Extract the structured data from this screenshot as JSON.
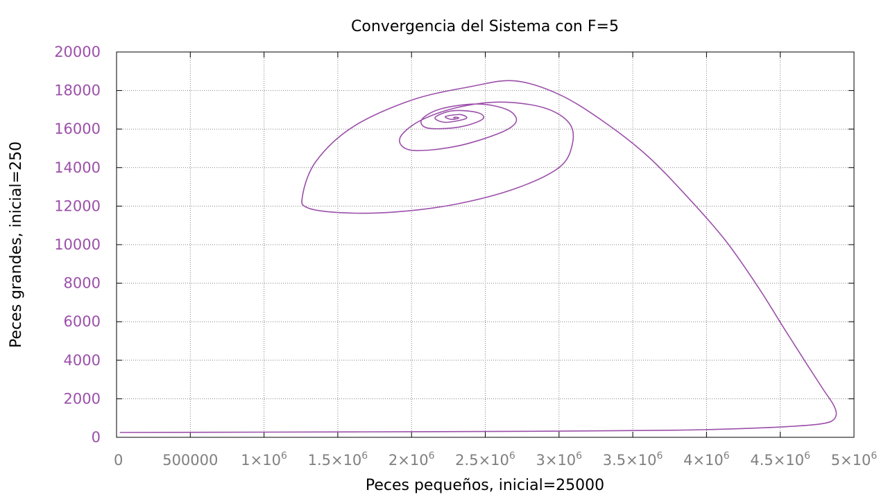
{
  "chart_data": {
    "type": "line",
    "title": "Convergencia del Sistema con F=5",
    "xlabel": "Peces pequeños, inicial=25000",
    "ylabel": "Peces grandes, inicial=250",
    "xlim": [
      0,
      5000000
    ],
    "ylim": [
      0,
      20000
    ],
    "x_ticks": [
      {
        "value": 0,
        "label": "0",
        "sup": ""
      },
      {
        "value": 500000,
        "label": "500000",
        "sup": ""
      },
      {
        "value": 1000000,
        "label": "1×10",
        "sup": "6"
      },
      {
        "value": 1500000,
        "label": "1.5×10",
        "sup": "6"
      },
      {
        "value": 2000000,
        "label": "2×10",
        "sup": "6"
      },
      {
        "value": 2500000,
        "label": "2.5×10",
        "sup": "6"
      },
      {
        "value": 3000000,
        "label": "3×10",
        "sup": "6"
      },
      {
        "value": 3500000,
        "label": "3.5×10",
        "sup": "6"
      },
      {
        "value": 4000000,
        "label": "4×10",
        "sup": "6"
      },
      {
        "value": 4500000,
        "label": "4.5×10",
        "sup": "6"
      },
      {
        "value": 5000000,
        "label": "5×10",
        "sup": "6"
      }
    ],
    "y_ticks": [
      {
        "value": 0,
        "label": "0"
      },
      {
        "value": 2000,
        "label": "2000"
      },
      {
        "value": 4000,
        "label": "4000"
      },
      {
        "value": 6000,
        "label": "6000"
      },
      {
        "value": 8000,
        "label": "8000"
      },
      {
        "value": 10000,
        "label": "10000"
      },
      {
        "value": 12000,
        "label": "12000"
      },
      {
        "value": 14000,
        "label": "14000"
      },
      {
        "value": 16000,
        "label": "16000"
      },
      {
        "value": 18000,
        "label": "18000"
      },
      {
        "value": 20000,
        "label": "20000"
      }
    ],
    "grid": true,
    "colors": {
      "series": "#9b4fa9",
      "ytick": "#9b4fa9",
      "xtick": "#7f7f7f",
      "grid": "#808080"
    },
    "series": [
      {
        "color": "#9b4fa9",
        "points": [
          [
            25000,
            250
          ],
          [
            1000000,
            270
          ],
          [
            2000000,
            290
          ],
          [
            3000000,
            320
          ],
          [
            3800000,
            370
          ],
          [
            4300000,
            470
          ],
          [
            4600000,
            580
          ],
          [
            4760000,
            680
          ],
          [
            4850000,
            850
          ],
          [
            4880000,
            1200
          ],
          [
            4860000,
            1700
          ],
          [
            4790000,
            2500
          ],
          [
            4680000,
            3800
          ],
          [
            4530000,
            5600
          ],
          [
            4350000,
            7800
          ],
          [
            4130000,
            10200
          ],
          [
            3880000,
            12400
          ],
          [
            3600000,
            14600
          ],
          [
            3300000,
            16400
          ],
          [
            3000000,
            17800
          ],
          [
            2700000,
            18500
          ],
          [
            2400000,
            18200
          ],
          [
            2000000,
            17500
          ],
          [
            1600000,
            16100
          ],
          [
            1350000,
            14300
          ],
          [
            1260000,
            12500
          ],
          [
            1300000,
            11900
          ],
          [
            1550000,
            11650
          ],
          [
            1900000,
            11700
          ],
          [
            2300000,
            12100
          ],
          [
            2700000,
            12900
          ],
          [
            3000000,
            14000
          ],
          [
            3090000,
            15200
          ],
          [
            3070000,
            16300
          ],
          [
            2900000,
            17100
          ],
          [
            2600000,
            17400
          ],
          [
            2300000,
            17100
          ],
          [
            2050000,
            16400
          ],
          [
            1920000,
            15500
          ],
          [
            2000000,
            14900
          ],
          [
            2300000,
            15100
          ],
          [
            2600000,
            15800
          ],
          [
            2710000,
            16400
          ],
          [
            2650000,
            17000
          ],
          [
            2450000,
            17300
          ],
          [
            2200000,
            17050
          ],
          [
            2070000,
            16500
          ],
          [
            2110000,
            16050
          ],
          [
            2320000,
            16100
          ],
          [
            2480000,
            16500
          ],
          [
            2450000,
            16850
          ],
          [
            2280000,
            16950
          ],
          [
            2160000,
            16600
          ],
          [
            2230000,
            16350
          ],
          [
            2370000,
            16550
          ],
          [
            2330000,
            16750
          ],
          [
            2230000,
            16650
          ],
          [
            2270000,
            16500
          ],
          [
            2320000,
            16570
          ],
          [
            2300000,
            16620
          ],
          [
            2285000,
            16590
          ],
          [
            2295000,
            16580
          ]
        ]
      }
    ]
  }
}
